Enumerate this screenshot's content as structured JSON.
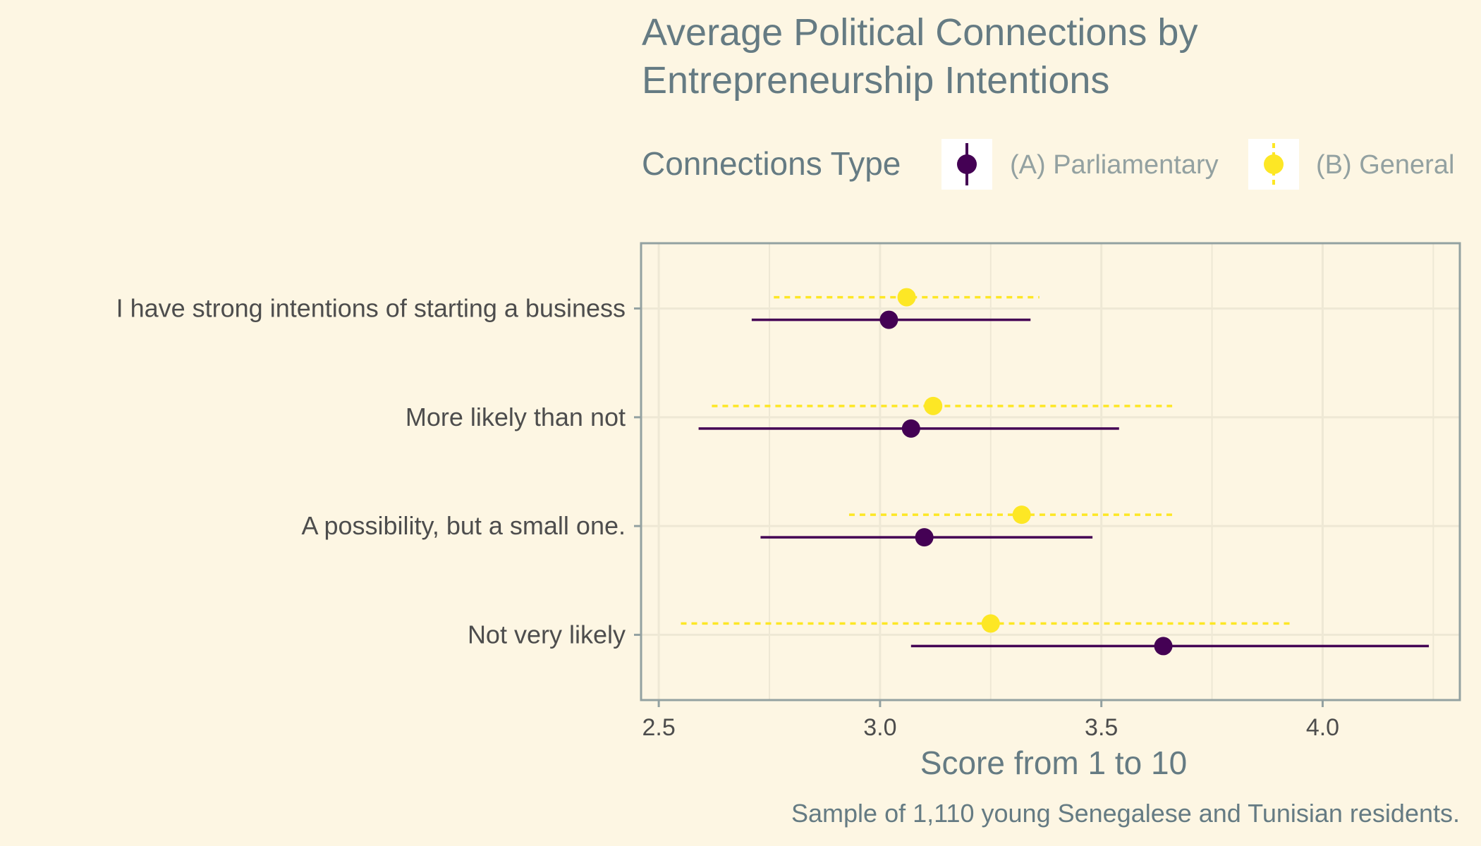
{
  "chart_data": {
    "type": "scatter",
    "subtype": "dot-and-errorbar",
    "title_lines": [
      "Average Political Connections by",
      "Entrepreneurship Intentions"
    ],
    "xlabel": "Score from 1 to 10",
    "ylabel": "",
    "caption": "Sample of 1,110 young Senegalese and Tunisian residents.",
    "legend_title": "Connections Type",
    "legend_position": "top",
    "xlim": [
      2.46,
      4.31
    ],
    "x_ticks": [
      2.5,
      3.0,
      3.5,
      4.0
    ],
    "x_tick_labels": [
      "2.5",
      "3.0",
      "3.5",
      "4.0"
    ],
    "grid": true,
    "orientation": "horizontal",
    "categories": [
      "I have strong intentions of starting a business",
      "More likely than not",
      "A possibility, but a small one.",
      "Not very likely"
    ],
    "series": [
      {
        "name": "(A) Parliamentary",
        "color": "#440154",
        "line_style": "solid",
        "values": [
          3.02,
          3.07,
          3.1,
          3.64
        ],
        "lower": [
          2.71,
          2.59,
          2.73,
          3.07
        ],
        "upper": [
          3.34,
          3.54,
          3.48,
          4.24
        ]
      },
      {
        "name": "(B) General",
        "color": "#fde725",
        "line_style": "dashed",
        "values": [
          3.06,
          3.12,
          3.32,
          3.25
        ],
        "lower": [
          2.76,
          2.62,
          2.93,
          2.55
        ],
        "upper": [
          3.36,
          3.66,
          3.67,
          3.93
        ]
      }
    ],
    "colors": {
      "background": "#fdf6e3",
      "title": "#657b83",
      "axis": "#93a1a1",
      "gridline": "#eee8d5",
      "tick_label": "#4d4d4d",
      "legend_label": "#93a1a1"
    }
  }
}
